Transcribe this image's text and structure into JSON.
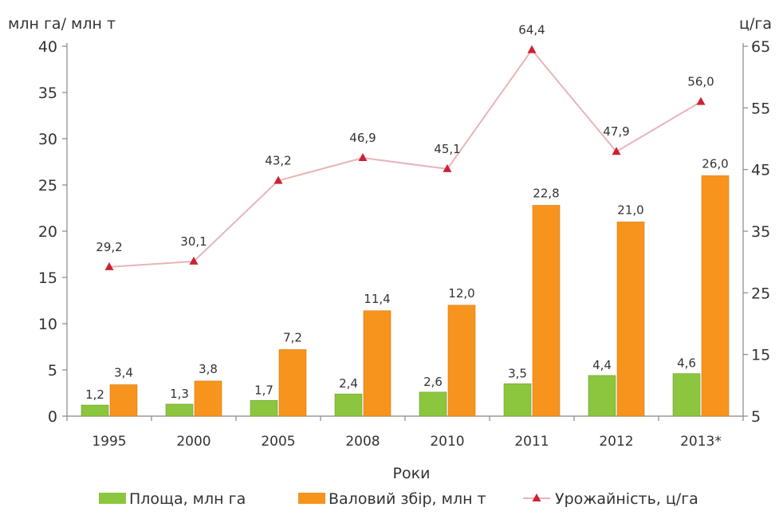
{
  "chart_data": {
    "type": "bar",
    "categories": [
      "1995",
      "2000",
      "2005",
      "2008",
      "2010",
      "2011",
      "2012",
      "2013*"
    ],
    "series": [
      {
        "name": "Площа, млн га",
        "kind": "bar",
        "axis": "left",
        "color": "#8cc63f",
        "values": [
          1.2,
          1.3,
          1.7,
          2.4,
          2.6,
          3.5,
          4.4,
          4.6
        ],
        "labels": [
          "1,2",
          "1,3",
          "1,7",
          "2,4",
          "2,6",
          "3,5",
          "4,4",
          "4,6"
        ]
      },
      {
        "name": "Валовий збір, млн т",
        "kind": "bar",
        "axis": "left",
        "color": "#f7941d",
        "values": [
          3.4,
          3.8,
          7.2,
          11.4,
          12.0,
          22.8,
          21.0,
          26.0
        ],
        "labels": [
          "3,4",
          "3,8",
          "7,2",
          "11,4",
          "12,0",
          "22,8",
          "21,0",
          "26,0"
        ]
      },
      {
        "name": "Урожайність, ц/га",
        "kind": "line",
        "axis": "right",
        "color": "#e8b4b8",
        "marker_color": "#cc2233",
        "values": [
          29.2,
          30.1,
          43.2,
          46.9,
          45.1,
          64.4,
          47.9,
          56.0
        ],
        "labels": [
          "29,2",
          "30,1",
          "43,2",
          "46,9",
          "45,1",
          "64,4",
          "47,9",
          "56,0"
        ]
      }
    ],
    "xlabel": "Роки",
    "ylabel_left": "млн га/ млн т",
    "ylabel_right": "ц/га",
    "ylim_left": [
      0,
      40
    ],
    "yticks_left": [
      "0",
      "5",
      "10",
      "15",
      "20",
      "25",
      "30",
      "35",
      "40"
    ],
    "ylim_right": [
      5,
      65
    ],
    "yticks_right": [
      "5",
      "15",
      "25",
      "35",
      "45",
      "55",
      "65"
    ],
    "grid": false,
    "legend_position": "bottom"
  }
}
